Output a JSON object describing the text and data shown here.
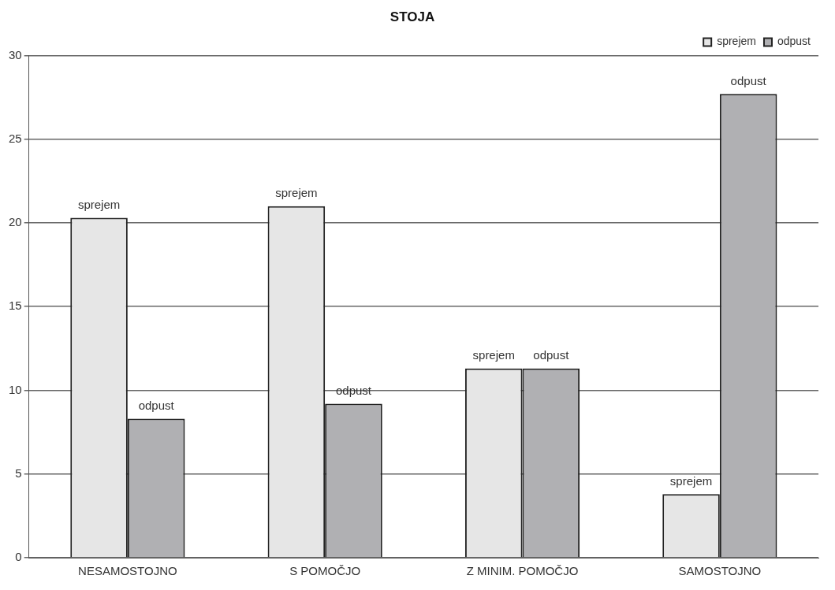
{
  "chart_data": {
    "type": "bar",
    "title": "STOJA",
    "categories": [
      "NESAMOSTOJNO",
      "S POMOČJO",
      "Z MINIM. POMOČJO",
      "SAMOSTOJNO"
    ],
    "series": [
      {
        "name": "sprejem",
        "color": "#e6e6e6",
        "values": [
          20.3,
          21.0,
          11.3,
          3.8
        ]
      },
      {
        "name": "odpust",
        "color": "#b0b0b3",
        "values": [
          8.3,
          9.2,
          11.3,
          27.7
        ]
      }
    ],
    "ylim": [
      0,
      30
    ],
    "yticks": [
      0,
      5,
      10,
      15,
      20,
      25,
      30
    ],
    "grid": "y",
    "legend": "top right"
  }
}
